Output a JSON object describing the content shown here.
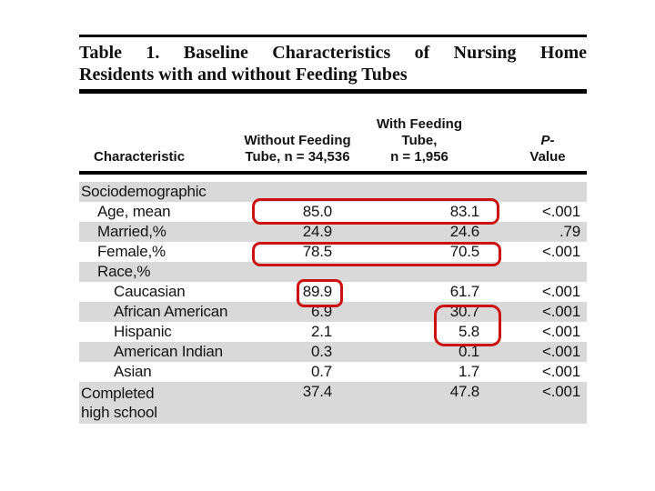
{
  "slide": {
    "title_line1": "Table 1. Baseline Characteristics of Nursing Home",
    "title_line2": "Residents with and without Feeding Tubes"
  },
  "table": {
    "columns": {
      "characteristic": "Characteristic",
      "without": "Without Feeding\nTube, n = 34,536",
      "with": "With Feeding\nTube,\nn = 1,956",
      "p_italic": "P-",
      "p_rest": "Value"
    },
    "rows": [
      {
        "label": "Sociodemographic",
        "indent": 0,
        "without": "",
        "with": "",
        "p": ""
      },
      {
        "label": "Age, mean",
        "indent": 1,
        "without": "85.0",
        "with": "83.1",
        "p": "<.001"
      },
      {
        "label": "Married,%",
        "indent": 1,
        "without": "24.9",
        "with": "24.6",
        "p": ".79"
      },
      {
        "label": "Female,%",
        "indent": 1,
        "without": "78.5",
        "with": "70.5",
        "p": "<.001"
      },
      {
        "label": "Race,%",
        "indent": 1,
        "without": "",
        "with": "",
        "p": ""
      },
      {
        "label": "Caucasian",
        "indent": 2,
        "without": "89.9",
        "with": "61.7",
        "p": "<.001"
      },
      {
        "label": "African American",
        "indent": 2,
        "without": "6.9",
        "with": "30.7",
        "p": "<.001"
      },
      {
        "label": "Hispanic",
        "indent": 2,
        "without": "2.1",
        "with": "5.8",
        "p": "<.001"
      },
      {
        "label": "American Indian",
        "indent": 2,
        "without": "0.3",
        "with": "0.1",
        "p": "<.001"
      },
      {
        "label": "Asian",
        "indent": 2,
        "without": "0.7",
        "with": "1.7",
        "p": "<.001"
      },
      {
        "label": "Completed\nhigh school",
        "indent": 0,
        "without": "37.4",
        "with": "47.8",
        "p": "<.001"
      }
    ],
    "highlights": [
      {
        "row": "Age, mean",
        "columns": [
          "without",
          "with"
        ],
        "values": [
          "85.0",
          "83.1"
        ]
      },
      {
        "row": "Female,%",
        "columns": [
          "without",
          "with"
        ],
        "values": [
          "78.5",
          "70.5"
        ]
      },
      {
        "row": "Caucasian",
        "columns": [
          "without"
        ],
        "values": [
          "89.9"
        ]
      },
      {
        "row": "African American / Hispanic",
        "columns": [
          "with"
        ],
        "values": [
          "30.7",
          "5.8"
        ]
      }
    ],
    "colors": {
      "highlight": "#cc1111",
      "stripe": "#d9d9d9"
    }
  }
}
